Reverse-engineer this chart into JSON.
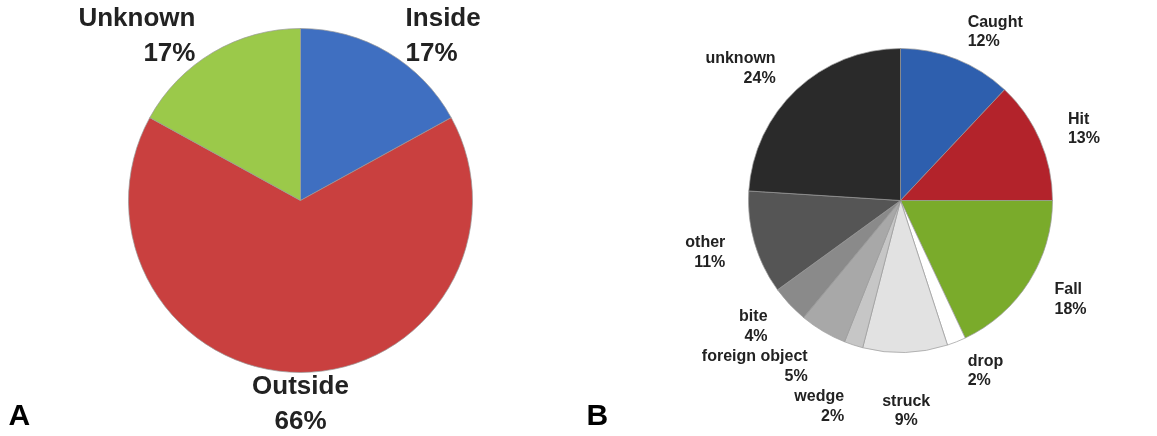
{
  "chart_data": [
    {
      "type": "pie",
      "categories": [
        "Inside",
        "Outside",
        "Unknown"
      ],
      "values": [
        17,
        66,
        17
      ],
      "value_labels": [
        "17%",
        "66%",
        "17%"
      ],
      "colors": [
        "#3f6fc1",
        "#c9403f",
        "#9bc94a"
      ],
      "annotations": [
        "A"
      ]
    },
    {
      "type": "pie",
      "categories": [
        "Caught",
        "Hit",
        "Fall",
        "drop",
        "struck",
        "wedge",
        "foreign object",
        "bite",
        "other",
        "unknown"
      ],
      "values": [
        12,
        13,
        18,
        2,
        9,
        2,
        5,
        4,
        11,
        24
      ],
      "value_labels": [
        "12%",
        "13%",
        "18%",
        "2%",
        "9%",
        "2%",
        "5%",
        "4%",
        "11%",
        "24%"
      ],
      "colors": [
        "#2e5fae",
        "#b3232b",
        "#7aab2b",
        "#ffffff",
        "#e2e2e2",
        "#c6c6c6",
        "#a8a8a8",
        "#8a8a8a",
        "#555555",
        "#2a2a2a"
      ],
      "annotations": [
        "B"
      ]
    }
  ]
}
